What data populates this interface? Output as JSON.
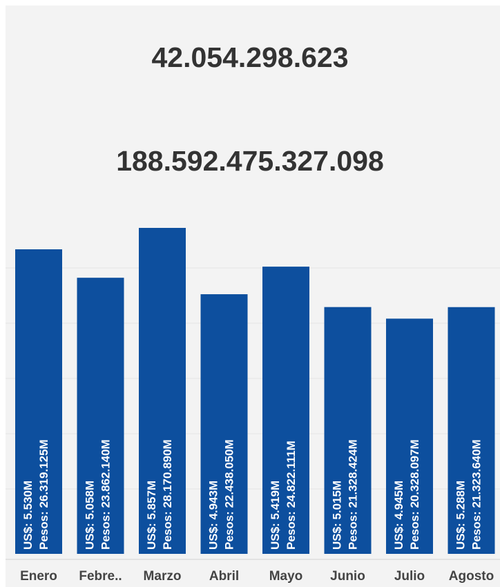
{
  "kpis": {
    "usd_total": "42.054.298.623",
    "pesos_total": "188.592.475.327.098"
  },
  "colors": {
    "bar": "#0d4f9e",
    "background": "#f3f3f3"
  },
  "chart_data": {
    "type": "bar",
    "categories": [
      "Enero",
      "Febre..",
      "Marzo",
      "Abril",
      "Mayo",
      "Junio",
      "Julio",
      "Agosto"
    ],
    "values": [
      5.53,
      5.058,
      5.857,
      4.943,
      5.419,
      5.015,
      4.945,
      5.288
    ],
    "bar_heights_relative": [
      26319.125,
      23862.14,
      28170.89,
      22438.05,
      24822.111,
      21328.424,
      20328.097,
      21323.64
    ],
    "label_usd": [
      "US$: 5.530M",
      "US$: 5.058M",
      "US$: 5.857M",
      "US$: 4.943M",
      "US$: 5.419M",
      "US$: 5.015M",
      "US$: 4.945M",
      "US$: 5.288M"
    ],
    "label_pesos": [
      "Pesos: 26.319.125M",
      "Pesos: 23.862.140M",
      "Pesos: 28.170.890M",
      "Pesos: 22.438.050M",
      "Pesos: 24.822.111M",
      "Pesos: 21.328.424M",
      "Pesos: 20.328.097M",
      "Pesos: 21.323.640M"
    ],
    "grid": true,
    "legend": "none"
  }
}
